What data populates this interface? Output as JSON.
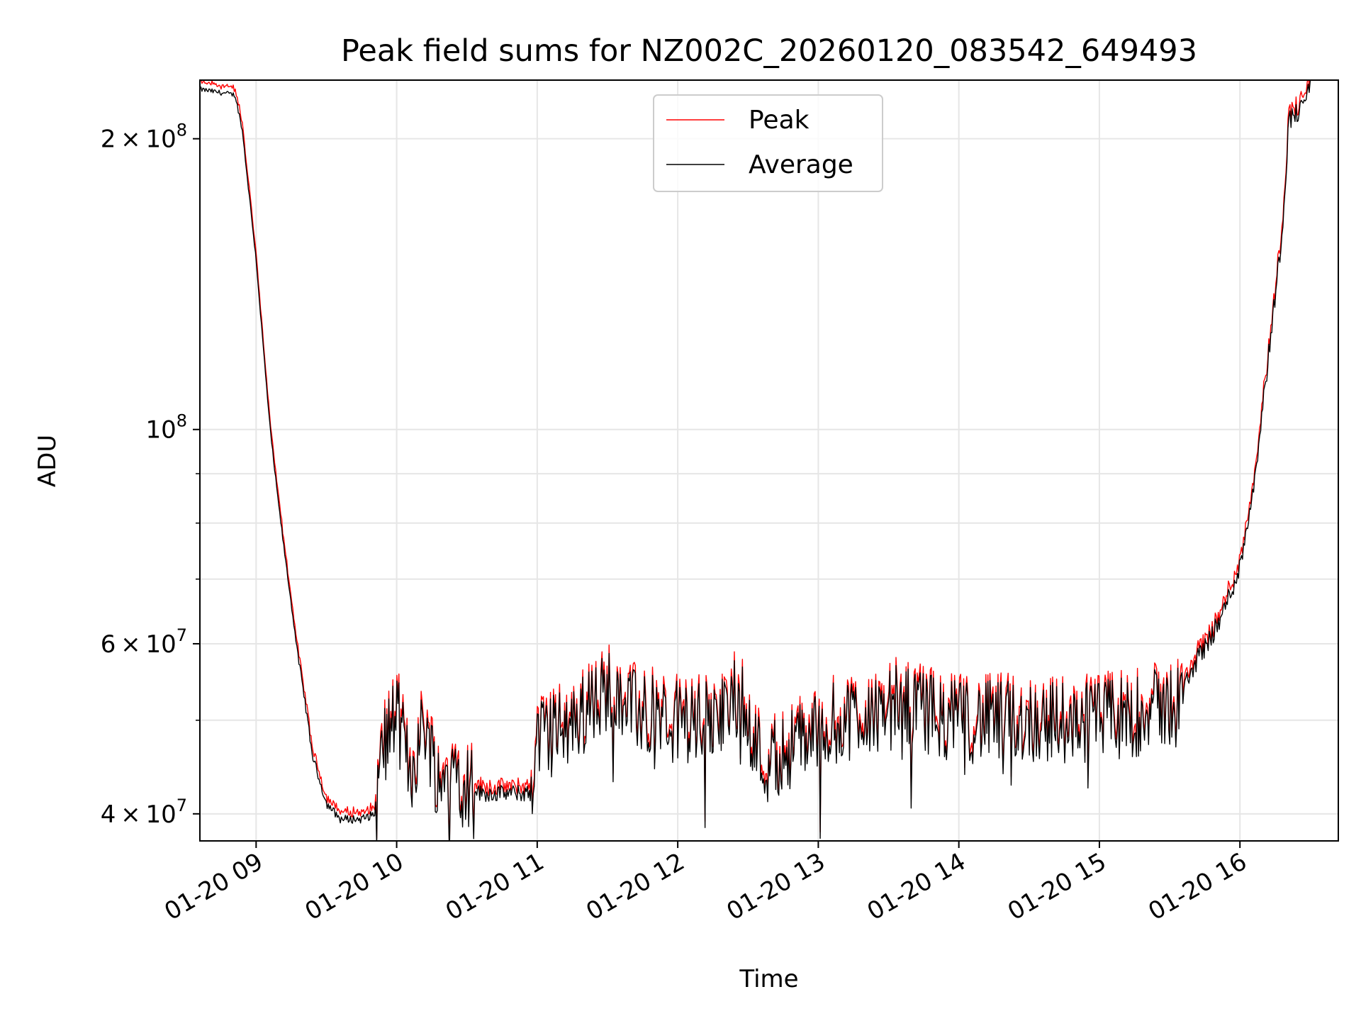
{
  "chart_data": {
    "type": "line",
    "title": "Peak field sums for NZ002C_20260120_083542_649493",
    "xlabel": "Time",
    "ylabel": "ADU",
    "yscale": "log",
    "grid": true,
    "legend_position": "top-center",
    "xlim": [
      8.6,
      16.7
    ],
    "ylim": [
      37500000,
      230000000
    ],
    "x_ticks": [
      9,
      10,
      11,
      12,
      13,
      14,
      15,
      16
    ],
    "x_tick_labels": [
      "01-20 09",
      "01-20 10",
      "01-20 11",
      "01-20 12",
      "01-20 13",
      "01-20 14",
      "01-20 15",
      "01-20 16"
    ],
    "y_major_ticks": [
      {
        "value": 40000000,
        "mantissa": "4",
        "exp": "7"
      },
      {
        "value": 60000000,
        "mantissa": "6",
        "exp": "7"
      },
      {
        "value": 100000000,
        "mantissa": "",
        "exp": "8"
      },
      {
        "value": 200000000,
        "mantissa": "2",
        "exp": "8"
      }
    ],
    "y_minor_ticks": [
      50000000,
      70000000,
      80000000,
      90000000
    ],
    "series": [
      {
        "name": "Peak",
        "color": "#ff0000",
        "offset": 0.012,
        "x": [],
        "values": []
      },
      {
        "name": "Average",
        "color": "#000000",
        "offset": 0.0,
        "x": [],
        "values": []
      }
    ],
    "anchors_x": [
      8.6,
      8.85,
      8.9,
      9.0,
      9.05,
      9.1,
      9.15,
      9.2,
      9.25,
      9.3,
      9.35,
      9.4,
      9.5,
      9.6,
      9.75,
      9.85,
      9.9,
      10.0,
      10.1,
      10.2,
      10.3,
      10.4,
      10.5,
      10.6,
      10.7,
      10.8,
      10.95,
      11.0,
      11.2,
      11.4,
      11.55,
      11.7,
      12.0,
      12.3,
      12.45,
      12.6,
      12.8,
      13.0,
      13.3,
      13.6,
      14.0,
      14.5,
      15.0,
      15.3,
      15.55,
      15.7,
      15.85,
      16.0,
      16.1,
      16.2,
      16.3,
      16.35,
      16.45,
      16.5
    ],
    "anchors_y": [
      225000000,
      222000000,
      205000000,
      150000000,
      122000000,
      100000000,
      86000000,
      75000000,
      66000000,
      58000000,
      52000000,
      46000000,
      41000000,
      39500000,
      39500000,
      40000000,
      47000000,
      51000000,
      44000000,
      50000000,
      43000000,
      45000000,
      43000000,
      42000000,
      42000000,
      42000000,
      42000000,
      48000000,
      49000000,
      52000000,
      55000000,
      51000000,
      50000000,
      50000000,
      54000000,
      45000000,
      47000000,
      49000000,
      51000000,
      52000000,
      50000000,
      50000000,
      50000000,
      51000000,
      52000000,
      58000000,
      63000000,
      72000000,
      88000000,
      118000000,
      160000000,
      210000000,
      215000000,
      230000000
    ],
    "n_points": 1100
  }
}
